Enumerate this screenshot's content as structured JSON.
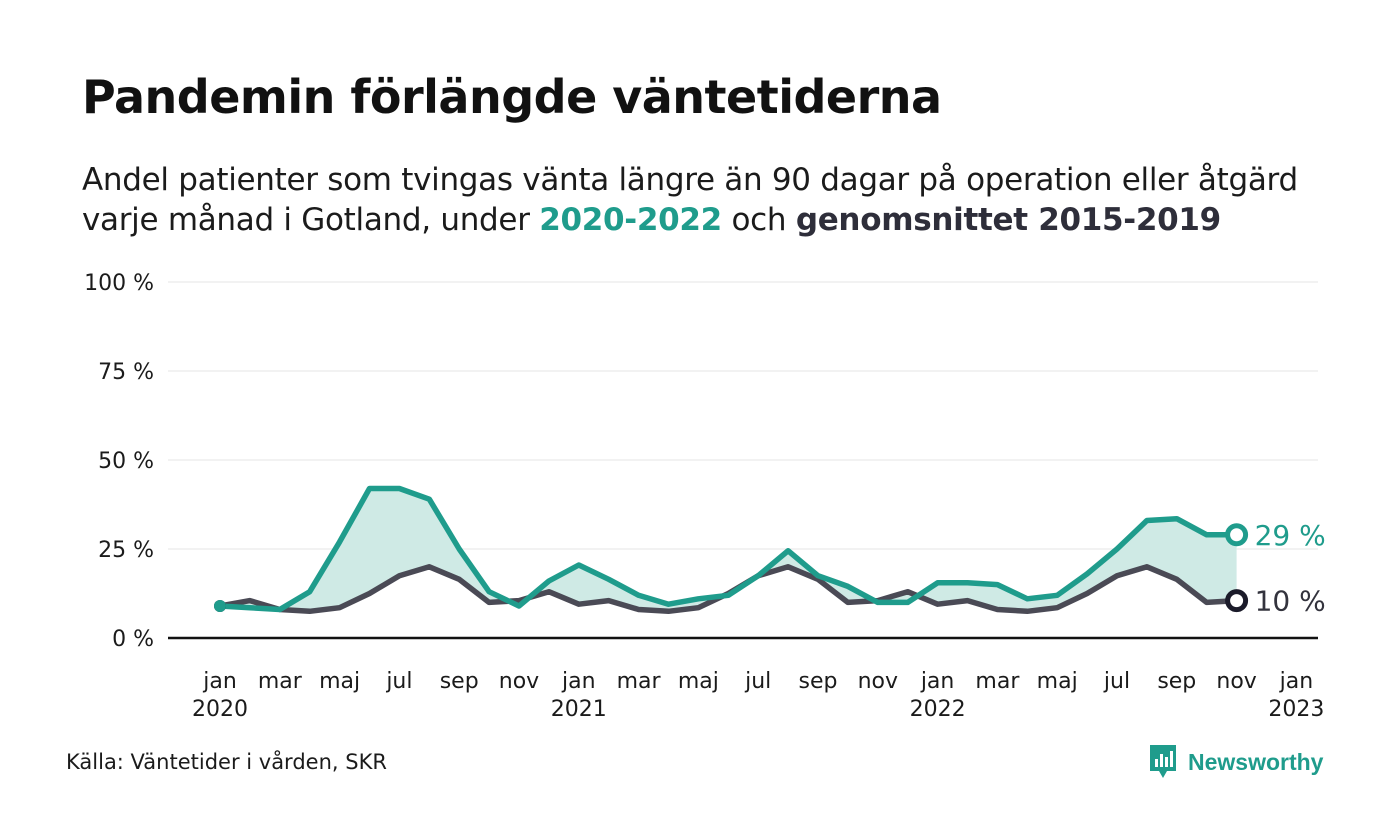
{
  "header": {
    "title": "Pandemin förlängde väntetiderna",
    "subtitle_prefix": "Andel patienter som tvingas vänta längre än 90 dagar på operation eller åtgärd",
    "subtitle_line2_start": "varje månad i Gotland, under ",
    "subtitle_current": "2020-2022",
    "subtitle_mid": " och ",
    "subtitle_avg": "genomsnittet 2015-2019"
  },
  "footer": {
    "source": "Källa: Väntetider i vården, SKR",
    "brand": "Newsworthy"
  },
  "colors": {
    "current": "#1f9c8c",
    "average": "#4a4a55",
    "fill": "#cfeae5",
    "grid": "#e6e6e6",
    "axis": "#111111"
  },
  "chart_data": {
    "type": "line",
    "title": "Pandemin förlängde väntetiderna",
    "ylim": [
      0,
      100
    ],
    "yticks": [
      0,
      25,
      50,
      75,
      100
    ],
    "ytick_labels": [
      "0 %",
      "25 %",
      "50 %",
      "75 %",
      "100 %"
    ],
    "xtick_labels": [
      {
        "month": "jan",
        "year": "2020"
      },
      {
        "month": "mar",
        "year": ""
      },
      {
        "month": "maj",
        "year": ""
      },
      {
        "month": "jul",
        "year": ""
      },
      {
        "month": "sep",
        "year": ""
      },
      {
        "month": "nov",
        "year": ""
      },
      {
        "month": "jan",
        "year": "2021"
      },
      {
        "month": "mar",
        "year": ""
      },
      {
        "month": "maj",
        "year": ""
      },
      {
        "month": "jul",
        "year": ""
      },
      {
        "month": "sep",
        "year": ""
      },
      {
        "month": "nov",
        "year": ""
      },
      {
        "month": "jan",
        "year": "2022"
      },
      {
        "month": "mar",
        "year": ""
      },
      {
        "month": "maj",
        "year": ""
      },
      {
        "month": "jul",
        "year": ""
      },
      {
        "month": "sep",
        "year": ""
      },
      {
        "month": "nov",
        "year": ""
      },
      {
        "month": "jan",
        "year": "2023"
      }
    ],
    "x": [
      "2020-01",
      "2020-02",
      "2020-03",
      "2020-04",
      "2020-05",
      "2020-06",
      "2020-07",
      "2020-08",
      "2020-09",
      "2020-10",
      "2020-11",
      "2020-12",
      "2021-01",
      "2021-02",
      "2021-03",
      "2021-04",
      "2021-05",
      "2021-06",
      "2021-07",
      "2021-08",
      "2021-09",
      "2021-10",
      "2021-11",
      "2021-12",
      "2022-01",
      "2022-02",
      "2022-03",
      "2022-04",
      "2022-05",
      "2022-06",
      "2022-07",
      "2022-08",
      "2022-09",
      "2022-10",
      "2022-11"
    ],
    "series": [
      {
        "name": "2020-2022",
        "values": [
          9,
          8.5,
          8,
          13,
          27,
          42,
          42,
          39,
          25,
          13,
          9,
          16,
          20.5,
          16.5,
          12,
          9.5,
          11,
          12,
          17.5,
          24.5,
          17.5,
          14.5,
          10,
          10,
          15.5,
          15.5,
          15,
          11,
          12,
          18,
          25,
          33,
          33.5,
          29,
          29
        ]
      },
      {
        "name": "genomsnittet 2015-2019",
        "values": [
          9,
          10.5,
          8,
          7.5,
          8.5,
          12.5,
          17.5,
          20,
          16.5,
          10,
          10.5,
          13,
          9.5,
          10.5,
          8,
          7.5,
          8.5,
          12.5,
          17.5,
          20,
          16.5,
          10,
          10.5,
          13,
          9.5,
          10.5,
          8,
          7.5,
          8.5,
          12.5,
          17.5,
          20,
          16.5,
          10,
          10.5
        ]
      }
    ],
    "end_labels": {
      "current": "29 %",
      "average": "10 %"
    },
    "grid": true
  }
}
